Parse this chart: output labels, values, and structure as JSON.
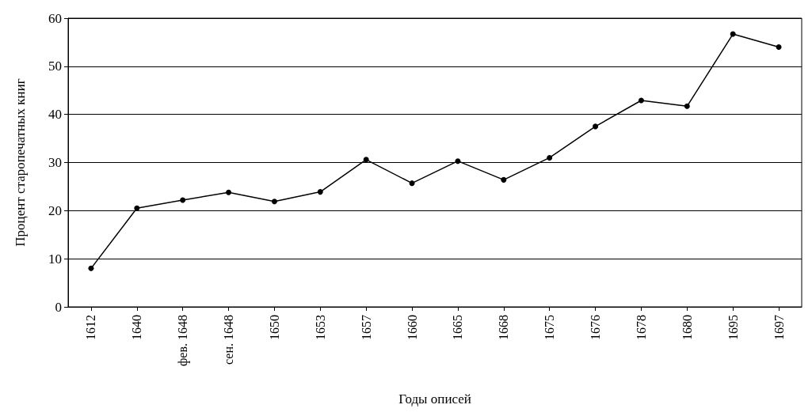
{
  "chart_data": {
    "type": "line",
    "xlabel": "Годы описей",
    "ylabel": "Процент старопечатных книг",
    "categories": [
      "1612",
      "1640",
      "фев. 1648",
      "сен. 1648",
      "1650",
      "1653",
      "1657",
      "1660",
      "1665",
      "1668",
      "1675",
      "1676",
      "1678",
      "1680",
      "1695",
      "1697"
    ],
    "values": [
      8,
      20.5,
      22.2,
      23.8,
      21.9,
      23.9,
      30.6,
      25.7,
      30.3,
      26.4,
      31,
      37.5,
      42.9,
      41.7,
      56.7,
      54
    ],
    "color": "#000000",
    "ylim": [
      0,
      60
    ],
    "yticks": [
      0,
      10,
      20,
      30,
      40,
      50,
      60
    ],
    "grid": "y",
    "marker": "circle",
    "line_style": "solid"
  }
}
